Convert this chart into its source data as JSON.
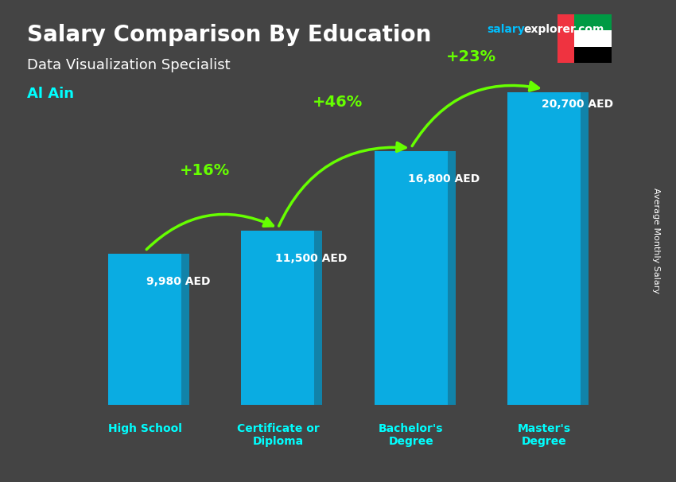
{
  "title": "Salary Comparison By Education",
  "subtitle": "Data Visualization Specialist",
  "city": "Al Ain",
  "watermark": "salaryexplorer.com",
  "ylabel": "Average Monthly Salary",
  "categories": [
    "High School",
    "Certificate or\nDiploma",
    "Bachelor's\nDegree",
    "Master's\nDegree"
  ],
  "values": [
    9980,
    11500,
    16800,
    20700
  ],
  "value_labels": [
    "9,980 AED",
    "11,500 AED",
    "16,800 AED",
    "20,700 AED"
  ],
  "pct_labels": [
    "+16%",
    "+46%",
    "+23%"
  ],
  "bar_color": "#00BFFF",
  "bar_color2": "#0099CC",
  "pct_color": "#66FF00",
  "title_color": "#FFFFFF",
  "subtitle_color": "#FFFFFF",
  "city_color": "#00FFFF",
  "watermark_color_salary": "#00BFFF",
  "watermark_color_explorer": "#FFFFFF",
  "value_label_color": "#FFFFFF",
  "xlim": [
    -0.5,
    4.0
  ],
  "ylim": [
    0,
    26000
  ],
  "bg_color": "#444444",
  "figsize": [
    8.5,
    6.06
  ],
  "dpi": 100
}
